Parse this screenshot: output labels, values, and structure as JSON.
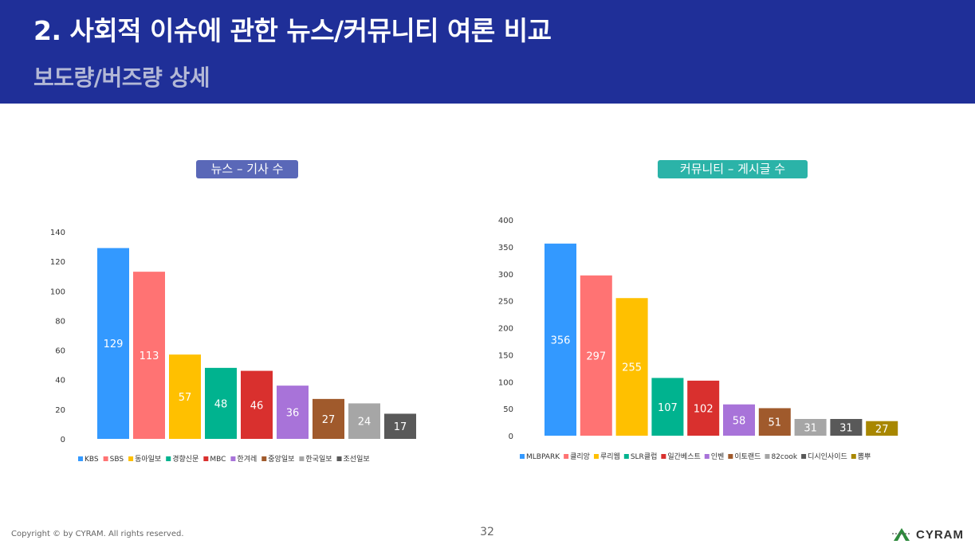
{
  "header": {
    "title": "2. 사회적 이슈에 관한 뉴스/커뮤니티 여론 비교",
    "subtitle": "보도량/버즈량 상세"
  },
  "footer": {
    "copyright": "Copyright © by CYRAM. All rights reserved.",
    "page_number": "32",
    "brand": "CYRAM"
  },
  "chart_data": [
    {
      "type": "bar",
      "title": "뉴스 – 기사 수",
      "categories": [
        "KBS",
        "SBS",
        "동아일보",
        "경향신문",
        "MBC",
        "한겨레",
        "중앙일보",
        "한국일보",
        "조선일보"
      ],
      "values": [
        129,
        113,
        57,
        48,
        46,
        36,
        27,
        24,
        17
      ],
      "colors": [
        "#3399ff",
        "#ff7373",
        "#ffc000",
        "#00b38f",
        "#d9302e",
        "#a873d9",
        "#a05a2c",
        "#a6a6a6",
        "#595959"
      ],
      "ylim": [
        0,
        140
      ],
      "yticks": [
        0,
        20,
        40,
        60,
        80,
        100,
        120,
        140
      ],
      "xlabel": "",
      "ylabel": "",
      "legend": "bottom"
    },
    {
      "type": "bar",
      "title": "커뮤니티 – 게시글 수",
      "categories": [
        "MLBPARK",
        "클리앙",
        "루리웹",
        "SLR클럽",
        "일간베스트",
        "인벤",
        "이토랜드",
        "82cook",
        "디시인사이드",
        "뽐뿌"
      ],
      "values": [
        356,
        297,
        255,
        107,
        102,
        58,
        51,
        31,
        31,
        27
      ],
      "colors": [
        "#3399ff",
        "#ff7373",
        "#ffc000",
        "#00b38f",
        "#d9302e",
        "#a873d9",
        "#a05a2c",
        "#a6a6a6",
        "#595959",
        "#a88700"
      ],
      "ylim": [
        0,
        400
      ],
      "yticks": [
        0,
        50,
        100,
        150,
        200,
        250,
        300,
        350,
        400
      ],
      "xlabel": "",
      "ylabel": "",
      "legend": "bottom"
    }
  ]
}
